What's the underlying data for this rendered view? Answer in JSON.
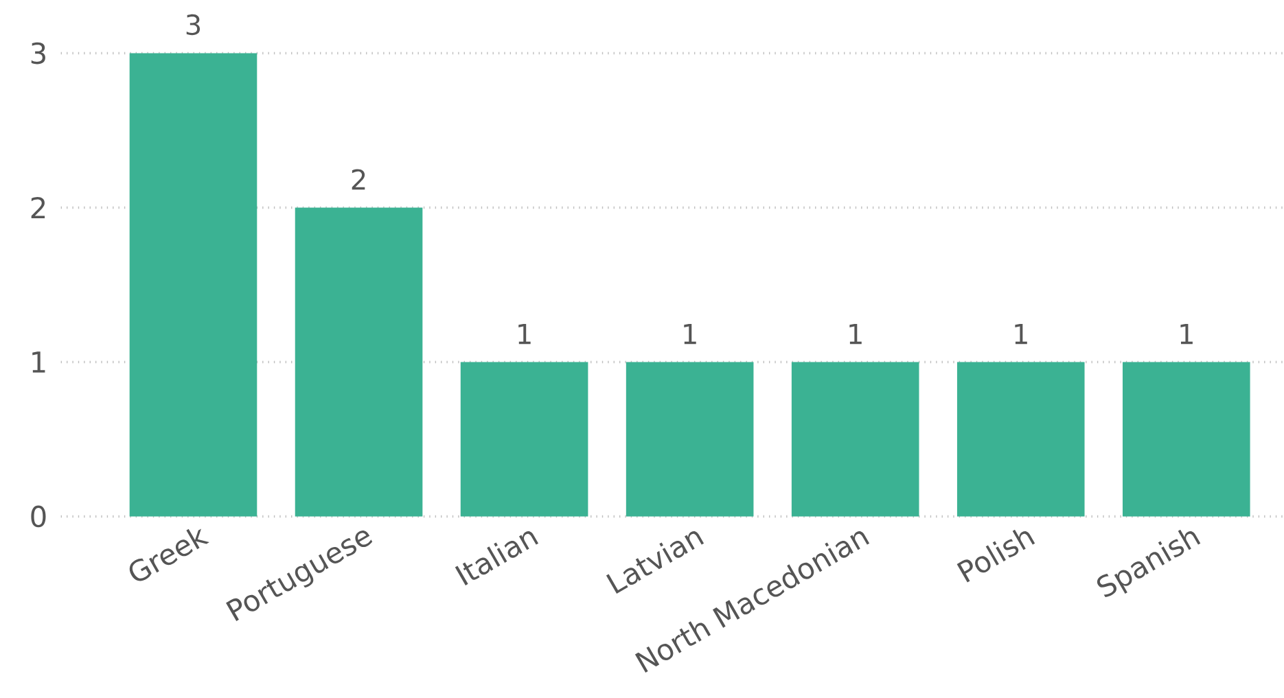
{
  "chart_data": {
    "type": "bar",
    "categories": [
      "Greek",
      "Portuguese",
      "Italian",
      "Latvian",
      "North Macedonian",
      "Polish",
      "Spanish"
    ],
    "values": [
      3,
      2,
      1,
      1,
      1,
      1,
      1
    ],
    "color": "#3bb293",
    "ylim": [
      0,
      3
    ],
    "yticks": [
      0,
      1,
      2,
      3
    ],
    "grid": "y",
    "data_labels": true
  }
}
